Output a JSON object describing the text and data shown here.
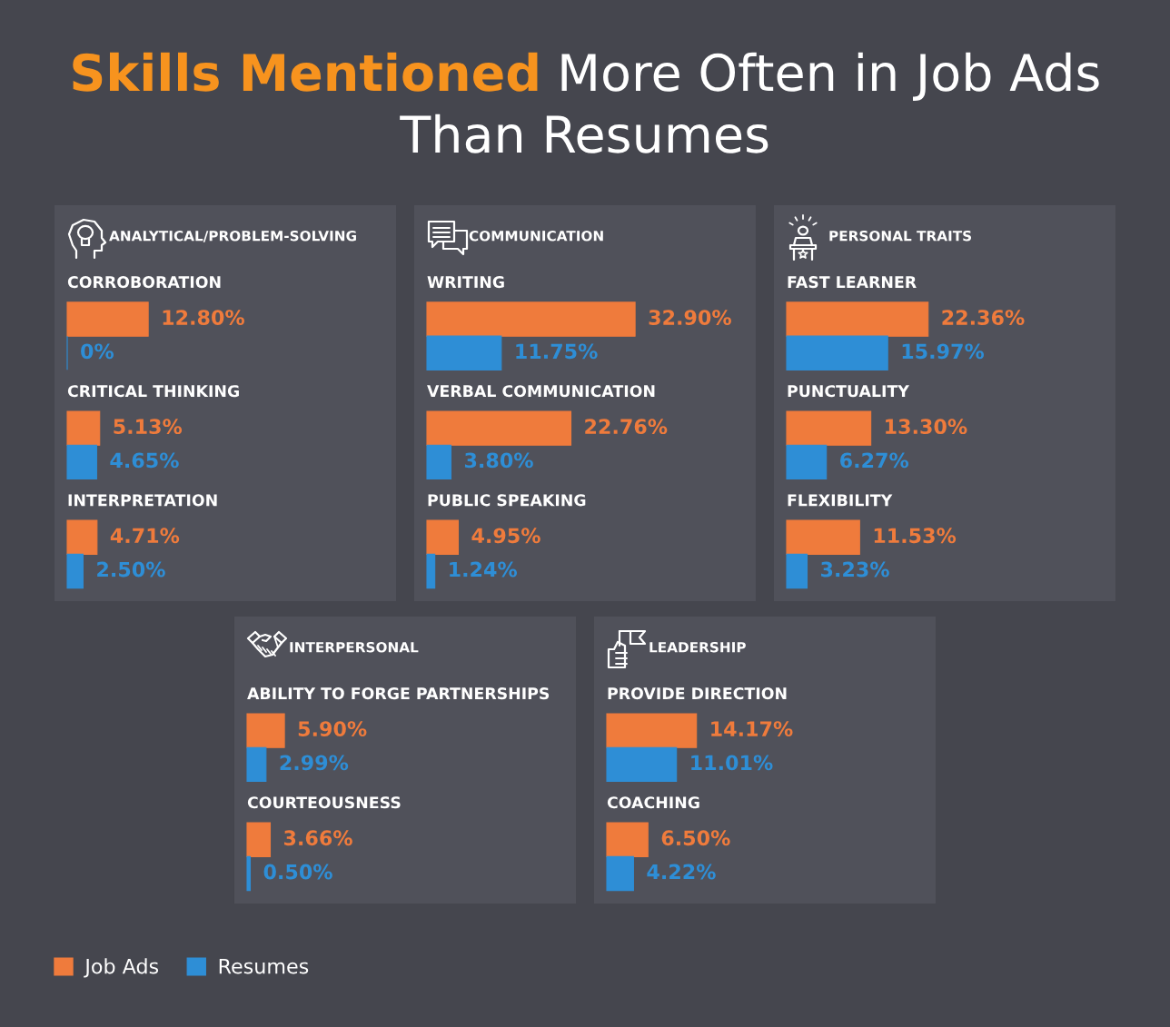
{
  "chart_data": [
    {
      "type": "bar",
      "orientation": "horizontal",
      "tick_labels": "y",
      "title": "Skills Mentioned More Often in Job Ads Than Resumes",
      "subtitle": "ANALYTICAL/PROBLEM-SOLVING",
      "legend": "bottom",
      "categories": [
        "CORROBORATION",
        "CRITICAL THINKING",
        "INTERPRETATION"
      ],
      "series": [
        {
          "name": "Job Ads",
          "color": "#ef7b3c",
          "values": [
            12.8,
            5.13,
            4.71
          ],
          "value_labels": [
            "12.80%",
            "5.13%",
            "4.71%"
          ]
        },
        {
          "name": "Resumes",
          "color": "#2e8ed6",
          "values": [
            0,
            4.65,
            2.5
          ],
          "value_labels": [
            "0%",
            "4.65%",
            "2.50%"
          ]
        }
      ]
    },
    {
      "type": "bar",
      "orientation": "horizontal",
      "tick_labels": "y",
      "subtitle": "COMMUNICATION",
      "categories": [
        "WRITING",
        "VERBAL COMMUNICATION",
        "PUBLIC SPEAKING"
      ],
      "series": [
        {
          "name": "Job Ads",
          "color": "#ef7b3c",
          "values": [
            32.9,
            22.76,
            4.95
          ],
          "value_labels": [
            "32.90%",
            "22.76%",
            "4.95%"
          ]
        },
        {
          "name": "Resumes",
          "color": "#2e8ed6",
          "values": [
            11.75,
            3.8,
            1.24
          ],
          "value_labels": [
            "11.75%",
            "3.80%",
            "1.24%"
          ]
        }
      ]
    },
    {
      "type": "bar",
      "orientation": "horizontal",
      "tick_labels": "y",
      "subtitle": "PERSONAL TRAITS",
      "categories": [
        "FAST LEARNER",
        "PUNCTUALITY",
        "FLEXIBILITY"
      ],
      "series": [
        {
          "name": "Job Ads",
          "color": "#ef7b3c",
          "values": [
            22.36,
            13.3,
            11.53
          ],
          "value_labels": [
            "22.36%",
            "13.30%",
            "11.53%"
          ]
        },
        {
          "name": "Resumes",
          "color": "#2e8ed6",
          "values": [
            15.97,
            6.27,
            3.23
          ],
          "value_labels": [
            "15.97%",
            "6.27%",
            "3.23%"
          ]
        }
      ]
    },
    {
      "type": "bar",
      "orientation": "horizontal",
      "tick_labels": "y",
      "subtitle": "INTERPERSONAL",
      "categories": [
        "ABILITY TO FORGE PARTNERSHIPS",
        "COURTEOUSNESS"
      ],
      "series": [
        {
          "name": "Job Ads",
          "color": "#ef7b3c",
          "values": [
            5.9,
            3.66
          ],
          "value_labels": [
            "5.90%",
            "3.66%"
          ]
        },
        {
          "name": "Resumes",
          "color": "#2e8ed6",
          "values": [
            2.99,
            0.5
          ],
          "value_labels": [
            "2.99%",
            "0.50%"
          ]
        }
      ]
    },
    {
      "type": "bar",
      "orientation": "horizontal",
      "tick_labels": "y",
      "subtitle": "LEADERSHIP",
      "categories": [
        "PROVIDE DIRECTION",
        "COACHING"
      ],
      "series": [
        {
          "name": "Job Ads",
          "color": "#ef7b3c",
          "values": [
            14.17,
            6.5
          ],
          "value_labels": [
            "14.17%",
            "6.50%"
          ]
        },
        {
          "name": "Resumes",
          "color": "#2e8ed6",
          "values": [
            11.01,
            4.22
          ],
          "value_labels": [
            "11.01%",
            "4.22%"
          ]
        }
      ]
    }
  ]
}
